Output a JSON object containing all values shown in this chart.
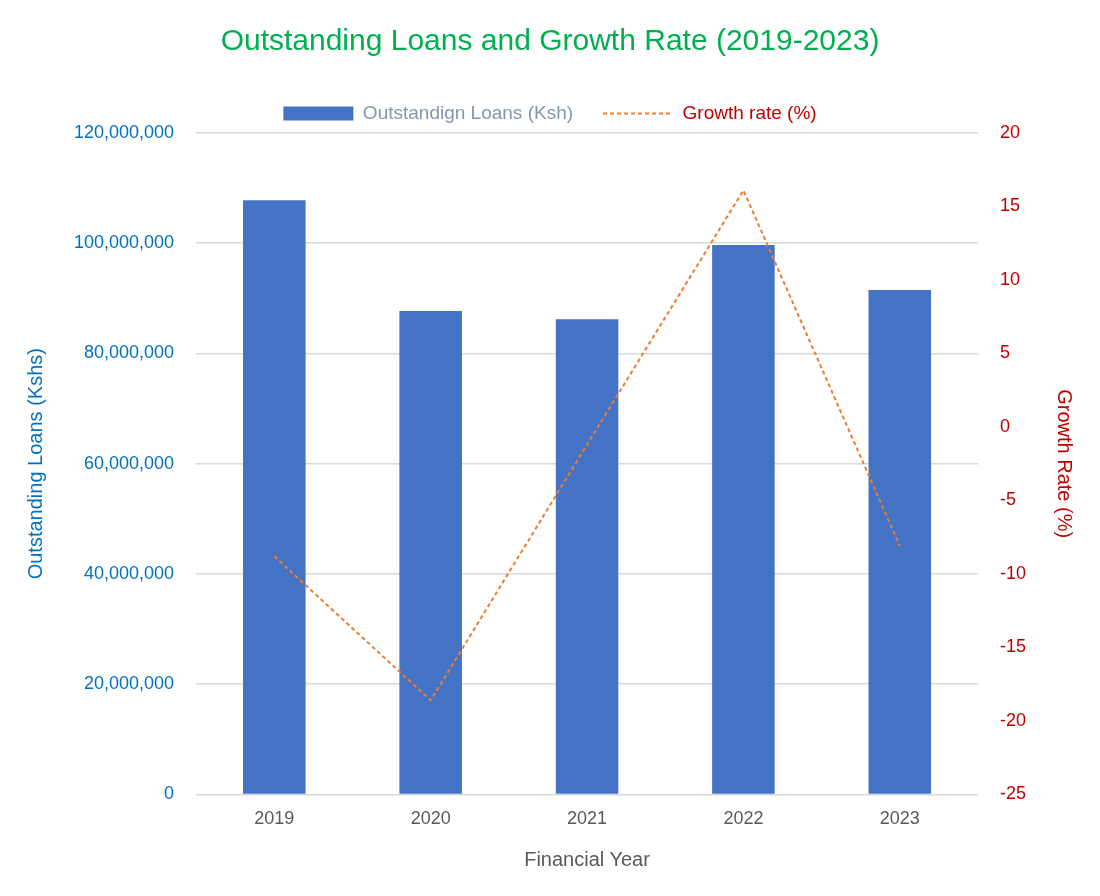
{
  "chart_data": {
    "type": "bar",
    "title": "Outstanding Loans and Growth Rate (2019-2023)",
    "xlabel": "Financial Year",
    "ylabel": "Outstanding Loans (Kshs)",
    "y2label": "Growth Rate (%)",
    "categories": [
      "2019",
      "2020",
      "2021",
      "2022",
      "2023"
    ],
    "series": [
      {
        "name": "Outstandign Loans (Ksh)",
        "color": "#4472c4",
        "values": [
          107800000,
          87700000,
          86200000,
          99700000,
          91500000
        ]
      },
      {
        "name": "Growth rate (%)",
        "type": "line",
        "axis": "y2",
        "color": "#ed7d31",
        "line_style": "dashed",
        "values": [
          -8.8,
          -18.6,
          -1.2,
          16.1,
          -8.1
        ]
      }
    ],
    "ylim": [
      0,
      120000000
    ],
    "yticks": [
      0,
      {
        "value": 20000000,
        "label": "20,000,000"
      },
      {
        "value": 40000000,
        "label": "40,000,000"
      },
      {
        "value": 60000000,
        "label": "60,000,000"
      },
      {
        "value": 80000000,
        "label": "80,000,000"
      },
      {
        "value": 100000000,
        "label": "100,000,000"
      },
      {
        "value": 120000000,
        "label": "120,000,000"
      }
    ],
    "y2lim": [
      -25,
      20
    ],
    "y2ticks": [
      -25,
      -20,
      -15,
      -10,
      -5,
      0,
      5,
      10,
      15,
      20
    ],
    "grid": "y",
    "legend": "top",
    "marker": "none"
  }
}
